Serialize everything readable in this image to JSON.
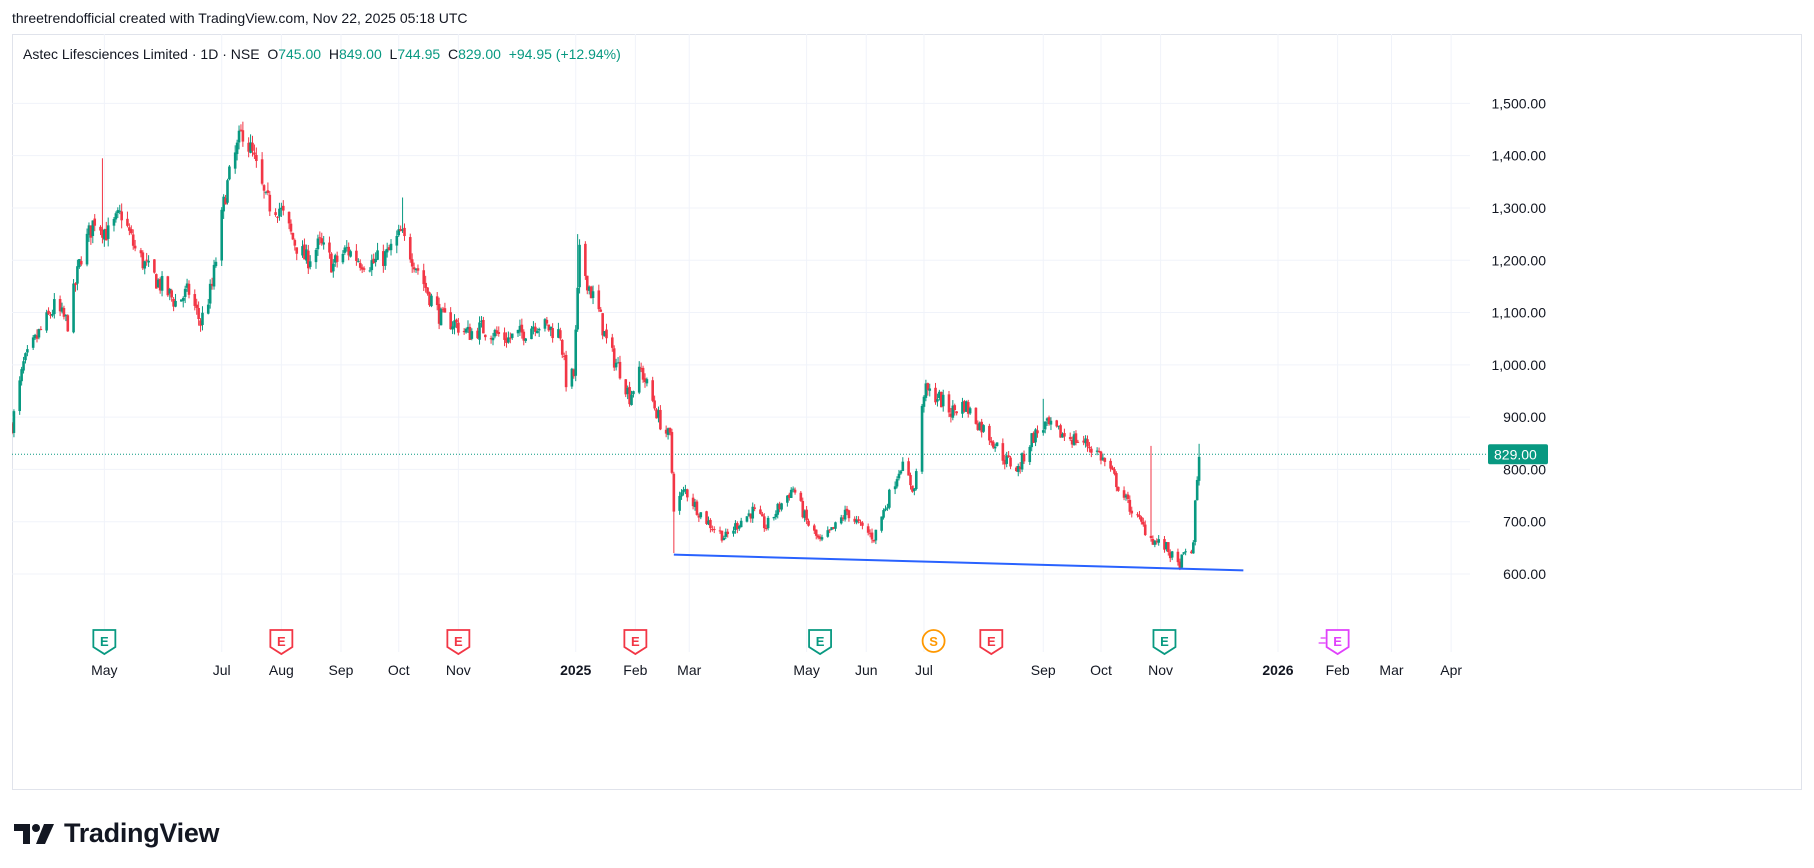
{
  "header": {
    "credit": "threetrendofficial created with TradingView.com, Nov 22, 2025 05:18 UTC"
  },
  "legend": {
    "symbol": "Astec Lifesciences Limited · 1D · NSE",
    "open_label": "O",
    "open": "745.00",
    "high_label": "H",
    "high": "849.00",
    "low_label": "L",
    "low": "744.95",
    "close_label": "C",
    "close": "829.00",
    "change": "+94.95 (+12.94%)"
  },
  "price_tag": "829.00",
  "brand": {
    "name": "TradingView"
  },
  "colors": {
    "up": "#089981",
    "down": "#f23645",
    "trendline": "#2962ff",
    "dividend": "#ff9800",
    "future_event": "#e040fb"
  },
  "chart_data": {
    "type": "candlestick",
    "y_axis": {
      "ticks": [
        600,
        700,
        800,
        900,
        1000,
        1100,
        1200,
        1300,
        1400,
        1500
      ],
      "tick_labels": [
        "600.00",
        "700.00",
        "800.00",
        "900.00",
        "1,000.00",
        "1,100.00",
        "1,200.00",
        "1,300.00",
        "1,400.00",
        "1,500.00"
      ],
      "range": [
        535,
        1560
      ],
      "side": "right"
    },
    "x_axis": {
      "range": [
        "2024-03-14",
        "2026-04-16"
      ],
      "labels": [
        {
          "date": "2024-05-01",
          "text": "May",
          "bold": false
        },
        {
          "date": "2024-07-01",
          "text": "Jul",
          "bold": false
        },
        {
          "date": "2024-08-01",
          "text": "Aug",
          "bold": false
        },
        {
          "date": "2024-09-01",
          "text": "Sep",
          "bold": false
        },
        {
          "date": "2024-10-01",
          "text": "Oct",
          "bold": false
        },
        {
          "date": "2024-11-01",
          "text": "Nov",
          "bold": false
        },
        {
          "date": "2025-01-01",
          "text": "2025",
          "bold": true
        },
        {
          "date": "2025-02-01",
          "text": "Feb",
          "bold": false
        },
        {
          "date": "2025-03-01",
          "text": "Mar",
          "bold": false
        },
        {
          "date": "2025-05-01",
          "text": "May",
          "bold": false
        },
        {
          "date": "2025-06-01",
          "text": "Jun",
          "bold": false
        },
        {
          "date": "2025-07-01",
          "text": "Jul",
          "bold": false
        },
        {
          "date": "2025-09-01",
          "text": "Sep",
          "bold": false
        },
        {
          "date": "2025-10-01",
          "text": "Oct",
          "bold": false
        },
        {
          "date": "2025-11-01",
          "text": "Nov",
          "bold": false
        },
        {
          "date": "2026-01-01",
          "text": "2026",
          "bold": true
        },
        {
          "date": "2026-02-01",
          "text": "Feb",
          "bold": false
        },
        {
          "date": "2026-03-01",
          "text": "Mar",
          "bold": false
        },
        {
          "date": "2026-04-01",
          "text": "Apr",
          "bold": false
        }
      ]
    },
    "last_price": 829.0,
    "price_path": [
      [
        "2024-03-14",
        885
      ],
      [
        "2024-03-20",
        1000
      ],
      [
        "2024-03-28",
        1060
      ],
      [
        "2024-04-05",
        1110
      ],
      [
        "2024-04-12",
        1080
      ],
      [
        "2024-04-19",
        1210
      ],
      [
        "2024-04-26",
        1280
      ],
      [
        "2024-05-03",
        1250
      ],
      [
        "2024-05-10",
        1290
      ],
      [
        "2024-05-17",
        1220
      ],
      [
        "2024-05-24",
        1180
      ],
      [
        "2024-05-31",
        1150
      ],
      [
        "2024-06-07",
        1120
      ],
      [
        "2024-06-14",
        1140
      ],
      [
        "2024-06-20",
        1080
      ],
      [
        "2024-06-26",
        1150
      ],
      [
        "2024-07-03",
        1330
      ],
      [
        "2024-07-08",
        1400
      ],
      [
        "2024-07-12",
        1450
      ],
      [
        "2024-07-17",
        1400
      ],
      [
        "2024-07-24",
        1310
      ],
      [
        "2024-07-31",
        1300
      ],
      [
        "2024-08-07",
        1240
      ],
      [
        "2024-08-14",
        1200
      ],
      [
        "2024-08-21",
        1230
      ],
      [
        "2024-08-28",
        1190
      ],
      [
        "2024-09-04",
        1220
      ],
      [
        "2024-09-11",
        1200
      ],
      [
        "2024-09-18",
        1195
      ],
      [
        "2024-09-25",
        1210
      ],
      [
        "2024-10-02",
        1250
      ],
      [
        "2024-10-09",
        1200
      ],
      [
        "2024-10-16",
        1140
      ],
      [
        "2024-10-23",
        1090
      ],
      [
        "2024-10-30",
        1080
      ],
      [
        "2024-11-06",
        1060
      ],
      [
        "2024-11-13",
        1070
      ],
      [
        "2024-11-20",
        1060
      ],
      [
        "2024-11-27",
        1050
      ],
      [
        "2024-12-04",
        1060
      ],
      [
        "2024-12-11",
        1080
      ],
      [
        "2024-12-18",
        1070
      ],
      [
        "2024-12-24",
        1060
      ],
      [
        "2024-12-27",
        970
      ],
      [
        "2024-12-31",
        980
      ],
      [
        "2025-01-03",
        1210
      ],
      [
        "2025-01-08",
        1150
      ],
      [
        "2025-01-13",
        1100
      ],
      [
        "2025-01-18",
        1030
      ],
      [
        "2025-01-24",
        990
      ],
      [
        "2025-01-29",
        940
      ],
      [
        "2025-02-04",
        990
      ],
      [
        "2025-02-10",
        930
      ],
      [
        "2025-02-15",
        880
      ],
      [
        "2025-02-19",
        860
      ],
      [
        "2025-02-21",
        730
      ],
      [
        "2025-02-27",
        760
      ],
      [
        "2025-03-06",
        720
      ],
      [
        "2025-03-13",
        690
      ],
      [
        "2025-03-20",
        670
      ],
      [
        "2025-03-27",
        700
      ],
      [
        "2025-04-03",
        720
      ],
      [
        "2025-04-10",
        690
      ],
      [
        "2025-04-17",
        730
      ],
      [
        "2025-04-24",
        765
      ],
      [
        "2025-05-01",
        700
      ],
      [
        "2025-05-08",
        660
      ],
      [
        "2025-05-15",
        685
      ],
      [
        "2025-05-22",
        720
      ],
      [
        "2025-05-29",
        690
      ],
      [
        "2025-06-05",
        670
      ],
      [
        "2025-06-12",
        740
      ],
      [
        "2025-06-19",
        810
      ],
      [
        "2025-06-26",
        760
      ],
      [
        "2025-07-01",
        950
      ],
      [
        "2025-07-08",
        940
      ],
      [
        "2025-07-15",
        910
      ],
      [
        "2025-07-22",
        925
      ],
      [
        "2025-07-29",
        890
      ],
      [
        "2025-08-05",
        860
      ],
      [
        "2025-08-12",
        820
      ],
      [
        "2025-08-19",
        800
      ],
      [
        "2025-08-26",
        860
      ],
      [
        "2025-09-02",
        885
      ],
      [
        "2025-09-09",
        870
      ],
      [
        "2025-09-16",
        860
      ],
      [
        "2025-09-23",
        850
      ],
      [
        "2025-09-30",
        830
      ],
      [
        "2025-10-07",
        790
      ],
      [
        "2025-10-14",
        740
      ],
      [
        "2025-10-21",
        700
      ],
      [
        "2025-10-28",
        665
      ],
      [
        "2025-11-04",
        650
      ],
      [
        "2025-11-10",
        615
      ],
      [
        "2025-11-14",
        640
      ],
      [
        "2025-11-18",
        650
      ],
      [
        "2025-11-19",
        740
      ],
      [
        "2025-11-21",
        829
      ]
    ],
    "spikes": [
      {
        "date": "2024-04-30",
        "high": 1395
      },
      {
        "date": "2024-07-12",
        "high": 1465
      },
      {
        "date": "2024-10-03",
        "high": 1320
      },
      {
        "date": "2025-01-02",
        "high": 1250
      },
      {
        "date": "2025-09-01",
        "high": 935
      },
      {
        "date": "2025-10-27",
        "high": 845
      },
      {
        "date": "2025-11-21",
        "high": 849
      },
      {
        "date": "2025-02-21",
        "low": 640
      }
    ],
    "trendline": {
      "start": [
        "2025-02-21",
        637
      ],
      "end": [
        "2025-12-14",
        607
      ]
    },
    "events": [
      {
        "date": "2024-05-01",
        "kind": "E",
        "color": "#089981"
      },
      {
        "date": "2024-08-01",
        "kind": "E",
        "color": "#f23645"
      },
      {
        "date": "2024-11-01",
        "kind": "E",
        "color": "#f23645"
      },
      {
        "date": "2025-02-01",
        "kind": "E",
        "color": "#f23645"
      },
      {
        "date": "2025-05-08",
        "kind": "E",
        "color": "#089981"
      },
      {
        "date": "2025-07-06",
        "kind": "S",
        "color": "#ff9800"
      },
      {
        "date": "2025-08-05",
        "kind": "E",
        "color": "#f23645"
      },
      {
        "date": "2025-11-03",
        "kind": "E",
        "color": "#089981"
      },
      {
        "date": "2026-02-01",
        "kind": "E",
        "color": "#e040fb",
        "future": true
      }
    ]
  }
}
